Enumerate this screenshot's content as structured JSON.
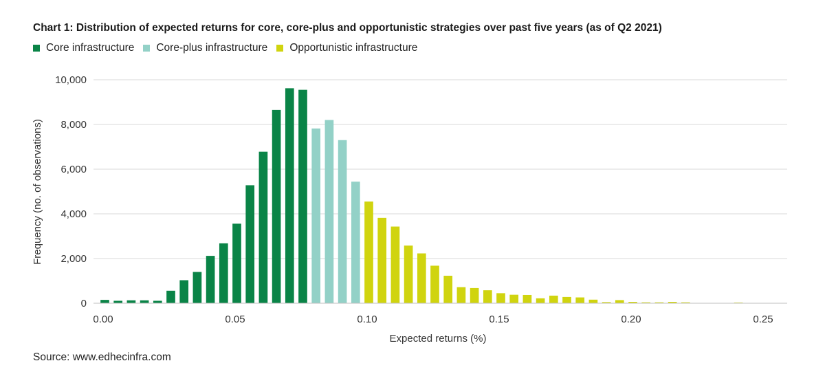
{
  "title": "Chart 1: Distribution of expected returns for core, core-plus and opportunistic strategies over past five years (as of Q2 2021)",
  "source": "Source: www.edhecinfra.com",
  "colors": {
    "core": "#0a8447",
    "core_plus": "#93d1c7",
    "opportunistic": "#d0d40f",
    "grid": "#d9d9d9",
    "axis": "#bfbfbf"
  },
  "legend": [
    {
      "label": "Core infrastructure",
      "color": "#0a8447"
    },
    {
      "label": "Core-plus infrastructure",
      "color": "#93d1c7"
    },
    {
      "label": "Opportunistic infrastructure",
      "color": "#d0d40f"
    }
  ],
  "chart_data": {
    "type": "bar",
    "xlabel": "Expected returns (%)",
    "ylabel": "Frequency (no. of observations)",
    "xlim": [
      0,
      0.255
    ],
    "ylim": [
      0,
      10000
    ],
    "bin_width": 0.005,
    "x_ticks": [
      "0.00",
      "0.05",
      "0.10",
      "0.15",
      "0.20",
      "0.25"
    ],
    "y_ticks": [
      "0",
      "2,000",
      "4,000",
      "6,000",
      "8,000",
      "10,000"
    ],
    "grid": true,
    "legend_position": "top-left",
    "series": [
      {
        "name": "Core infrastructure",
        "color": "#0a8447",
        "x": [
          0.0,
          0.005,
          0.01,
          0.015,
          0.02,
          0.025,
          0.03,
          0.035,
          0.04,
          0.045,
          0.05,
          0.055,
          0.06,
          0.065,
          0.07,
          0.075
        ],
        "values": [
          150,
          110,
          130,
          130,
          110,
          560,
          1030,
          1400,
          2120,
          2680,
          3560,
          5280,
          6780,
          8650,
          9620,
          9550
        ]
      },
      {
        "name": "Core-plus infrastructure",
        "color": "#93d1c7",
        "x": [
          0.08,
          0.085,
          0.09,
          0.095
        ],
        "values": [
          7820,
          8200,
          7300,
          5440
        ]
      },
      {
        "name": "Opportunistic infrastructure",
        "color": "#d0d40f",
        "x": [
          0.1,
          0.105,
          0.11,
          0.115,
          0.12,
          0.125,
          0.13,
          0.135,
          0.14,
          0.145,
          0.15,
          0.155,
          0.16,
          0.165,
          0.17,
          0.175,
          0.18,
          0.185,
          0.19,
          0.195,
          0.2,
          0.205,
          0.21,
          0.215,
          0.22,
          0.24
        ],
        "values": [
          4550,
          3820,
          3430,
          2580,
          2230,
          1680,
          1230,
          720,
          680,
          580,
          450,
          380,
          370,
          220,
          340,
          280,
          260,
          160,
          50,
          140,
          60,
          40,
          40,
          60,
          40,
          30
        ]
      }
    ]
  }
}
